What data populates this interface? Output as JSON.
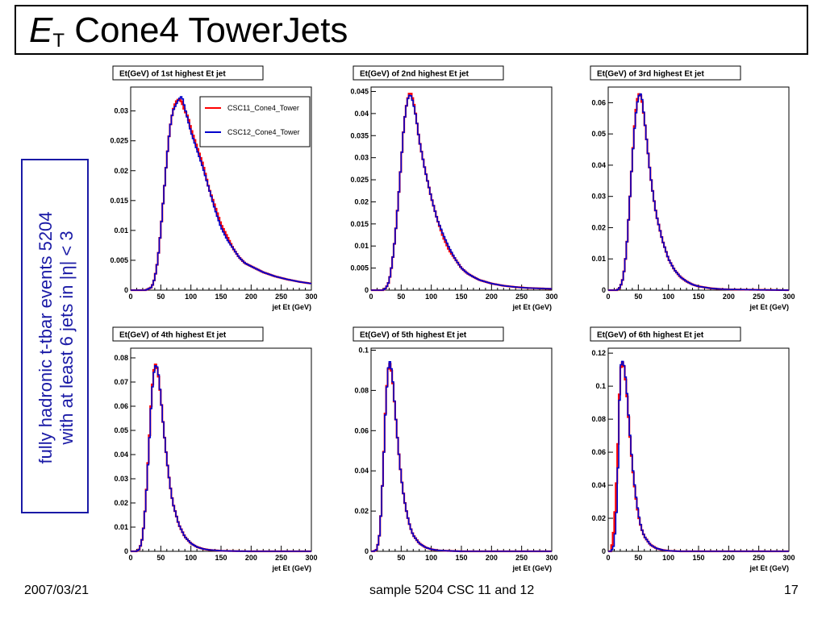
{
  "slide": {
    "title_main": "E",
    "title_sub": "T",
    "title_rest": "Cone4 TowerJets",
    "side_line1": "fully hadronic t-tbar events 5204",
    "side_line2": "with at least 6 jets in |η| < 3",
    "footer_left": "2007/03/21",
    "footer_center": "sample 5204 CSC 11 and 12",
    "footer_right": "17"
  },
  "colors": {
    "csc11": "#ff0000",
    "csc12": "#0000cc"
  },
  "chart_data": [
    {
      "type": "histogram",
      "title": "Et(GeV) of 1st highest Et jet",
      "xlabel": "jet Et (GeV)",
      "xlim": [
        0,
        300
      ],
      "ylim": [
        0,
        0.034
      ],
      "yticks": [
        0,
        0.005,
        0.01,
        0.015,
        0.02,
        0.025,
        0.03
      ],
      "ytick_labels": [
        "0",
        "0.005",
        "0.01",
        "0.015",
        "0.02",
        "0.025",
        "0.03"
      ],
      "xticks": [
        0,
        50,
        100,
        150,
        200,
        250,
        300
      ],
      "legend": [
        "CSC11_Cone4_Tower",
        "CSC12_Cone4_Tower"
      ],
      "peak_x": 85,
      "peak_y": 0.032,
      "series": [
        {
          "name": "CSC11_Cone4_Tower",
          "x": [
            0,
            25,
            35,
            40,
            45,
            50,
            55,
            60,
            65,
            70,
            75,
            80,
            85,
            90,
            95,
            100,
            110,
            120,
            130,
            140,
            150,
            160,
            170,
            180,
            190,
            200,
            220,
            240,
            260,
            280,
            300
          ],
          "y": [
            0,
            0,
            0.0005,
            0.002,
            0.005,
            0.01,
            0.016,
            0.022,
            0.027,
            0.03,
            0.0315,
            0.032,
            0.0315,
            0.03,
            0.029,
            0.027,
            0.024,
            0.021,
            0.017,
            0.014,
            0.011,
            0.009,
            0.007,
            0.0055,
            0.0045,
            0.004,
            0.003,
            0.0023,
            0.0018,
            0.0014,
            0.0011
          ]
        },
        {
          "name": "CSC12_Cone4_Tower",
          "x": [
            0,
            25,
            35,
            40,
            45,
            50,
            55,
            60,
            65,
            70,
            75,
            80,
            85,
            90,
            95,
            100,
            110,
            120,
            130,
            140,
            150,
            160,
            170,
            180,
            190,
            200,
            220,
            240,
            260,
            280,
            300
          ],
          "y": [
            0,
            0,
            0.0005,
            0.002,
            0.005,
            0.01,
            0.016,
            0.022,
            0.027,
            0.03,
            0.031,
            0.032,
            0.0325,
            0.0305,
            0.0285,
            0.0265,
            0.0235,
            0.0205,
            0.017,
            0.0135,
            0.0105,
            0.0085,
            0.007,
            0.0055,
            0.0045,
            0.004,
            0.003,
            0.0023,
            0.0018,
            0.0014,
            0.0011
          ]
        }
      ]
    },
    {
      "type": "histogram",
      "title": "Et(GeV) of 2nd highest Et jet",
      "xlabel": "jet Et (GeV)",
      "xlim": [
        0,
        300
      ],
      "ylim": [
        0,
        0.046
      ],
      "yticks": [
        0,
        0.005,
        0.01,
        0.015,
        0.02,
        0.025,
        0.03,
        0.035,
        0.04,
        0.045
      ],
      "ytick_labels": [
        "0",
        "0.005",
        "0.01",
        "0.015",
        "0.02",
        "0.025",
        "0.03",
        "0.035",
        "0.04",
        "0.045"
      ],
      "xticks": [
        0,
        50,
        100,
        150,
        200,
        250,
        300
      ],
      "series": [
        {
          "name": "CSC11_Cone4_Tower",
          "x": [
            0,
            20,
            25,
            30,
            35,
            40,
            45,
            50,
            55,
            60,
            65,
            70,
            75,
            80,
            90,
            100,
            110,
            120,
            130,
            140,
            150,
            160,
            170,
            180,
            200,
            220,
            240,
            260,
            280,
            300
          ],
          "y": [
            0,
            0,
            0.0005,
            0.002,
            0.006,
            0.012,
            0.02,
            0.029,
            0.038,
            0.043,
            0.045,
            0.043,
            0.039,
            0.034,
            0.027,
            0.021,
            0.016,
            0.012,
            0.009,
            0.007,
            0.005,
            0.0038,
            0.003,
            0.0023,
            0.0015,
            0.001,
            0.0007,
            0.0005,
            0.0004,
            0.0003
          ]
        },
        {
          "name": "CSC12_Cone4_Tower",
          "x": [
            0,
            20,
            25,
            30,
            35,
            40,
            45,
            50,
            55,
            60,
            65,
            70,
            75,
            80,
            90,
            100,
            110,
            120,
            130,
            140,
            150,
            160,
            170,
            180,
            200,
            220,
            240,
            260,
            280,
            300
          ],
          "y": [
            0,
            0,
            0.0005,
            0.002,
            0.006,
            0.012,
            0.02,
            0.029,
            0.038,
            0.043,
            0.0445,
            0.0425,
            0.039,
            0.034,
            0.027,
            0.021,
            0.016,
            0.0125,
            0.0095,
            0.007,
            0.005,
            0.0038,
            0.003,
            0.0023,
            0.0015,
            0.001,
            0.0007,
            0.0005,
            0.0004,
            0.0003
          ]
        }
      ]
    },
    {
      "type": "histogram",
      "title": "Et(GeV) of 3rd highest Et jet",
      "xlabel": "jet Et (GeV)",
      "xlim": [
        0,
        300
      ],
      "ylim": [
        0,
        0.065
      ],
      "yticks": [
        0,
        0.01,
        0.02,
        0.03,
        0.04,
        0.05,
        0.06
      ],
      "ytick_labels": [
        "0",
        "0.01",
        "0.02",
        "0.03",
        "0.04",
        "0.05",
        "0.06"
      ],
      "xticks": [
        0,
        50,
        100,
        150,
        200,
        250,
        300
      ],
      "series": [
        {
          "name": "CSC11_Cone4_Tower",
          "x": [
            0,
            15,
            20,
            25,
            30,
            35,
            40,
            45,
            50,
            55,
            60,
            65,
            70,
            75,
            80,
            90,
            100,
            110,
            120,
            130,
            140,
            150,
            170,
            190,
            210,
            250,
            300
          ],
          "y": [
            0,
            0,
            0.001,
            0.004,
            0.012,
            0.026,
            0.042,
            0.056,
            0.063,
            0.062,
            0.055,
            0.046,
            0.037,
            0.03,
            0.024,
            0.016,
            0.01,
            0.0065,
            0.0042,
            0.0028,
            0.0018,
            0.0012,
            0.0006,
            0.0003,
            0.0002,
            0.0001,
            0
          ]
        },
        {
          "name": "CSC12_Cone4_Tower",
          "x": [
            0,
            15,
            20,
            25,
            30,
            35,
            40,
            45,
            50,
            55,
            60,
            65,
            70,
            75,
            80,
            90,
            100,
            110,
            120,
            130,
            140,
            150,
            170,
            190,
            210,
            250,
            300
          ],
          "y": [
            0,
            0,
            0.001,
            0.004,
            0.012,
            0.026,
            0.042,
            0.055,
            0.062,
            0.063,
            0.055,
            0.046,
            0.037,
            0.03,
            0.024,
            0.016,
            0.01,
            0.0065,
            0.0042,
            0.0028,
            0.0018,
            0.0012,
            0.0006,
            0.0003,
            0.0002,
            0.0001,
            0
          ]
        }
      ]
    },
    {
      "type": "histogram",
      "title": "Et(GeV) of 4th highest Et jet",
      "xlabel": "jet Et (GeV)",
      "xlim": [
        0,
        300
      ],
      "ylim": [
        0,
        0.084
      ],
      "yticks": [
        0,
        0.01,
        0.02,
        0.03,
        0.04,
        0.05,
        0.06,
        0.07,
        0.08
      ],
      "ytick_labels": [
        "0",
        "0.01",
        "0.02",
        "0.03",
        "0.04",
        "0.05",
        "0.06",
        "0.07",
        "0.08"
      ],
      "xticks": [
        0,
        50,
        100,
        150,
        200,
        250,
        300
      ],
      "series": [
        {
          "name": "CSC11_Cone4_Tower",
          "x": [
            0,
            10,
            15,
            20,
            25,
            30,
            35,
            40,
            45,
            50,
            55,
            60,
            65,
            70,
            80,
            90,
            100,
            110,
            120,
            130,
            150,
            170,
            200,
            250,
            300
          ],
          "y": [
            0,
            0,
            0.001,
            0.006,
            0.02,
            0.042,
            0.066,
            0.078,
            0.075,
            0.064,
            0.05,
            0.038,
            0.028,
            0.02,
            0.011,
            0.006,
            0.0033,
            0.0018,
            0.001,
            0.0006,
            0.0002,
            0.0001,
            0,
            0,
            0
          ]
        },
        {
          "name": "CSC12_Cone4_Tower",
          "x": [
            0,
            10,
            15,
            20,
            25,
            30,
            35,
            40,
            45,
            50,
            55,
            60,
            65,
            70,
            80,
            90,
            100,
            110,
            120,
            130,
            150,
            170,
            200,
            250,
            300
          ],
          "y": [
            0,
            0,
            0.001,
            0.006,
            0.02,
            0.041,
            0.065,
            0.077,
            0.076,
            0.064,
            0.05,
            0.038,
            0.028,
            0.02,
            0.011,
            0.006,
            0.0033,
            0.0018,
            0.001,
            0.0006,
            0.0002,
            0.0001,
            0,
            0,
            0
          ]
        }
      ]
    },
    {
      "type": "histogram",
      "title": "Et(GeV) of 5th highest Et jet",
      "xlabel": "jet Et (GeV)",
      "xlim": [
        0,
        300
      ],
      "ylim": [
        0,
        0.101
      ],
      "yticks": [
        0,
        0.02,
        0.04,
        0.06,
        0.08,
        0.1
      ],
      "ytick_labels": [
        "0",
        "0.02",
        "0.04",
        "0.06",
        "0.08",
        "0.1"
      ],
      "xticks": [
        0,
        50,
        100,
        150,
        200,
        250,
        300
      ],
      "series": [
        {
          "name": "CSC11_Cone4_Tower",
          "x": [
            0,
            5,
            10,
            15,
            20,
            25,
            30,
            35,
            40,
            45,
            50,
            55,
            60,
            65,
            70,
            80,
            90,
            100,
            110,
            120,
            150,
            200,
            300
          ],
          "y": [
            0,
            0,
            0.001,
            0.01,
            0.04,
            0.078,
            0.095,
            0.088,
            0.07,
            0.052,
            0.037,
            0.026,
            0.018,
            0.012,
            0.008,
            0.004,
            0.002,
            0.001,
            0.0005,
            0.0003,
            0,
            0,
            0
          ]
        },
        {
          "name": "CSC12_Cone4_Tower",
          "x": [
            0,
            5,
            10,
            15,
            20,
            25,
            30,
            35,
            40,
            45,
            50,
            55,
            60,
            65,
            70,
            80,
            90,
            100,
            110,
            120,
            150,
            200,
            300
          ],
          "y": [
            0,
            0,
            0.001,
            0.01,
            0.04,
            0.077,
            0.096,
            0.089,
            0.07,
            0.052,
            0.037,
            0.026,
            0.018,
            0.012,
            0.008,
            0.004,
            0.002,
            0.001,
            0.0005,
            0.0003,
            0,
            0,
            0
          ]
        }
      ]
    },
    {
      "type": "histogram",
      "title": "Et(GeV) of 6th highest Et jet",
      "xlabel": "jet Et (GeV)",
      "xlim": [
        0,
        300
      ],
      "ylim": [
        0,
        0.123
      ],
      "yticks": [
        0,
        0.02,
        0.04,
        0.06,
        0.08,
        0.1,
        0.12
      ],
      "ytick_labels": [
        "0",
        "0.02",
        "0.04",
        "0.06",
        "0.08",
        "0.1",
        "0.12"
      ],
      "xticks": [
        0,
        50,
        100,
        150,
        200,
        250,
        300
      ],
      "series": [
        {
          "name": "CSC11_Cone4_Tower",
          "x": [
            0,
            5,
            10,
            15,
            20,
            25,
            30,
            35,
            40,
            45,
            50,
            55,
            60,
            70,
            80,
            90,
            100,
            120,
            150,
            300
          ],
          "y": [
            0,
            0,
            0.015,
            0.05,
            0.11,
            0.116,
            0.1,
            0.075,
            0.052,
            0.035,
            0.022,
            0.014,
            0.009,
            0.004,
            0.0018,
            0.0008,
            0.0003,
            0,
            0,
            0
          ]
        },
        {
          "name": "CSC12_Cone4_Tower",
          "x": [
            0,
            5,
            10,
            15,
            20,
            25,
            30,
            35,
            40,
            45,
            50,
            55,
            60,
            70,
            80,
            90,
            100,
            120,
            150,
            300
          ],
          "y": [
            0,
            0,
            0.004,
            0.03,
            0.112,
            0.116,
            0.102,
            0.076,
            0.053,
            0.036,
            0.023,
            0.014,
            0.009,
            0.004,
            0.0018,
            0.0008,
            0.0003,
            0,
            0,
            0
          ]
        }
      ]
    }
  ]
}
